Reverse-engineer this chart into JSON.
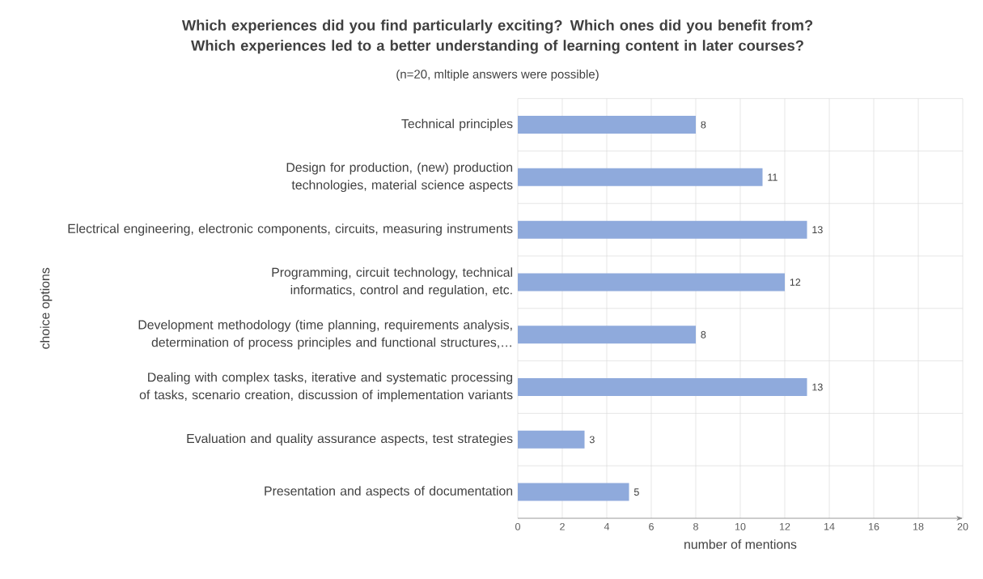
{
  "chart_data": {
    "type": "bar",
    "orientation": "horizontal",
    "title": "Which experiences did you find particularly exciting? Which ones did you benefit from? Which experiences led to a better understanding of learning content in later courses?",
    "subtitle": "(n=20, mltiple answers were possible)",
    "xlabel": "number of mentions",
    "ylabel": "choice options",
    "categories": [
      "Technical principles",
      "Design for production, (new) production technologies, material science aspects",
      "Electrical engineering, electronic components, circuits, measuring instruments",
      "Programming, circuit technology, technical informatics, control and regulation, etc.",
      "Development methodology (time planning, requirements analysis, determination of process principles and functional structures,…",
      "Dealing with complex tasks, iterative and systematic processing of tasks, scenario creation, discussion of implementation variants",
      "Evaluation and quality assurance aspects, test strategies",
      "Presentation and aspects of documentation"
    ],
    "values": [
      8,
      11,
      13,
      12,
      8,
      13,
      3,
      5
    ],
    "color": "#8faadc",
    "xlim": [
      0,
      20
    ],
    "xticks": [
      0,
      2,
      4,
      6,
      8,
      10,
      12,
      14,
      16,
      18,
      20
    ],
    "grid": true,
    "data_labels": true
  }
}
